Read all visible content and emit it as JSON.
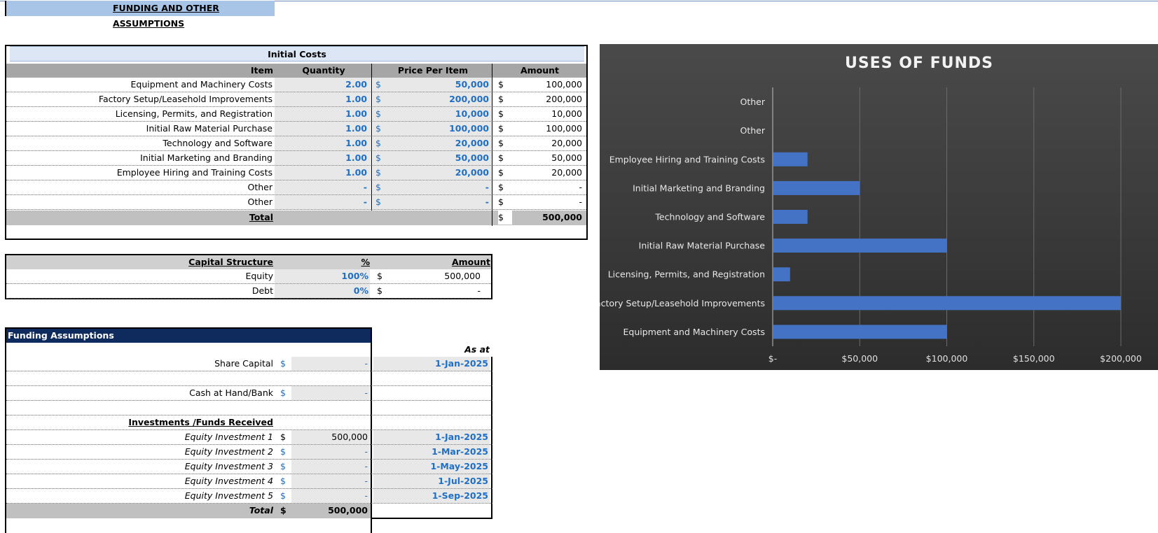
{
  "sheet_title": "FUNDING AND OTHER ASSUMPTIONS",
  "initial_costs": {
    "title": "Initial Costs",
    "headers": {
      "item": "Item",
      "quantity": "Quantity",
      "price": "Price Per Item",
      "amount": "Amount"
    },
    "currency": "$",
    "rows": [
      {
        "item": "Equipment and Machinery Costs",
        "quantity": "2.00",
        "price": "50,000",
        "amount": "100,000"
      },
      {
        "item": "Factory Setup/Leasehold Improvements",
        "quantity": "1.00",
        "price": "200,000",
        "amount": "200,000"
      },
      {
        "item": "Licensing, Permits, and Registration",
        "quantity": "1.00",
        "price": "10,000",
        "amount": "10,000"
      },
      {
        "item": "Initial Raw Material Purchase",
        "quantity": "1.00",
        "price": "100,000",
        "amount": "100,000"
      },
      {
        "item": "Technology and Software",
        "quantity": "1.00",
        "price": "20,000",
        "amount": "20,000"
      },
      {
        "item": "Initial Marketing and Branding",
        "quantity": "1.00",
        "price": "50,000",
        "amount": "50,000"
      },
      {
        "item": "Employee Hiring and Training Costs",
        "quantity": "1.00",
        "price": "20,000",
        "amount": "20,000"
      },
      {
        "item": "Other",
        "quantity": "-",
        "price": "-",
        "amount": "-"
      },
      {
        "item": "Other",
        "quantity": "-",
        "price": "-",
        "amount": "-"
      }
    ],
    "total_label": "Total",
    "total_amount": "500,000"
  },
  "capital_structure": {
    "headers": {
      "label": "Capital Structure",
      "pct": "%",
      "amount": "Amount"
    },
    "currency": "$",
    "rows": [
      {
        "label": "Equity",
        "pct": "100%",
        "amount": "500,000"
      },
      {
        "label": "Debt",
        "pct": "0%",
        "amount": "-"
      }
    ]
  },
  "funding": {
    "title": "Funding Assumptions",
    "as_at_label": "As at",
    "currency": "$",
    "share_capital": {
      "label": "Share Capital",
      "value": "-",
      "date": "1-Jan-2025"
    },
    "cash": {
      "label": "Cash at Hand/Bank",
      "value": "-"
    },
    "investments_title": "Investments /Funds Received",
    "investments": [
      {
        "label": "Equity Investment 1",
        "value": "500,000",
        "date": "1-Jan-2025"
      },
      {
        "label": "Equity Investment 2",
        "value": "-",
        "date": "1-Mar-2025"
      },
      {
        "label": "Equity Investment 3",
        "value": "-",
        "date": "1-May-2025"
      },
      {
        "label": "Equity Investment 4",
        "value": "-",
        "date": "1-Jul-2025"
      },
      {
        "label": "Equity Investment 5",
        "value": "-",
        "date": "1-Sep-2025"
      }
    ],
    "total_label": "Total",
    "total_value": "500,000"
  },
  "chart_data": {
    "type": "bar",
    "orientation": "horizontal",
    "title": "USES OF FUNDS",
    "categories": [
      "Equipment and Machinery Costs",
      "Factory Setup/Leasehold Improvements",
      "Licensing, Permits, and Registration",
      "Initial Raw Material Purchase",
      "Technology and Software",
      "Initial Marketing and Branding",
      "Employee Hiring and Training Costs",
      "Other",
      "Other"
    ],
    "values": [
      100000,
      200000,
      10000,
      100000,
      20000,
      50000,
      20000,
      0,
      0
    ],
    "xlim": [
      0,
      200000
    ],
    "x_ticks": [
      0,
      50000,
      100000,
      150000,
      200000
    ],
    "x_tick_labels": [
      "$-",
      "$50,000",
      "$100,000",
      "$150,000",
      "$200,000"
    ],
    "grid": true,
    "bar_color": "#4472c4"
  }
}
